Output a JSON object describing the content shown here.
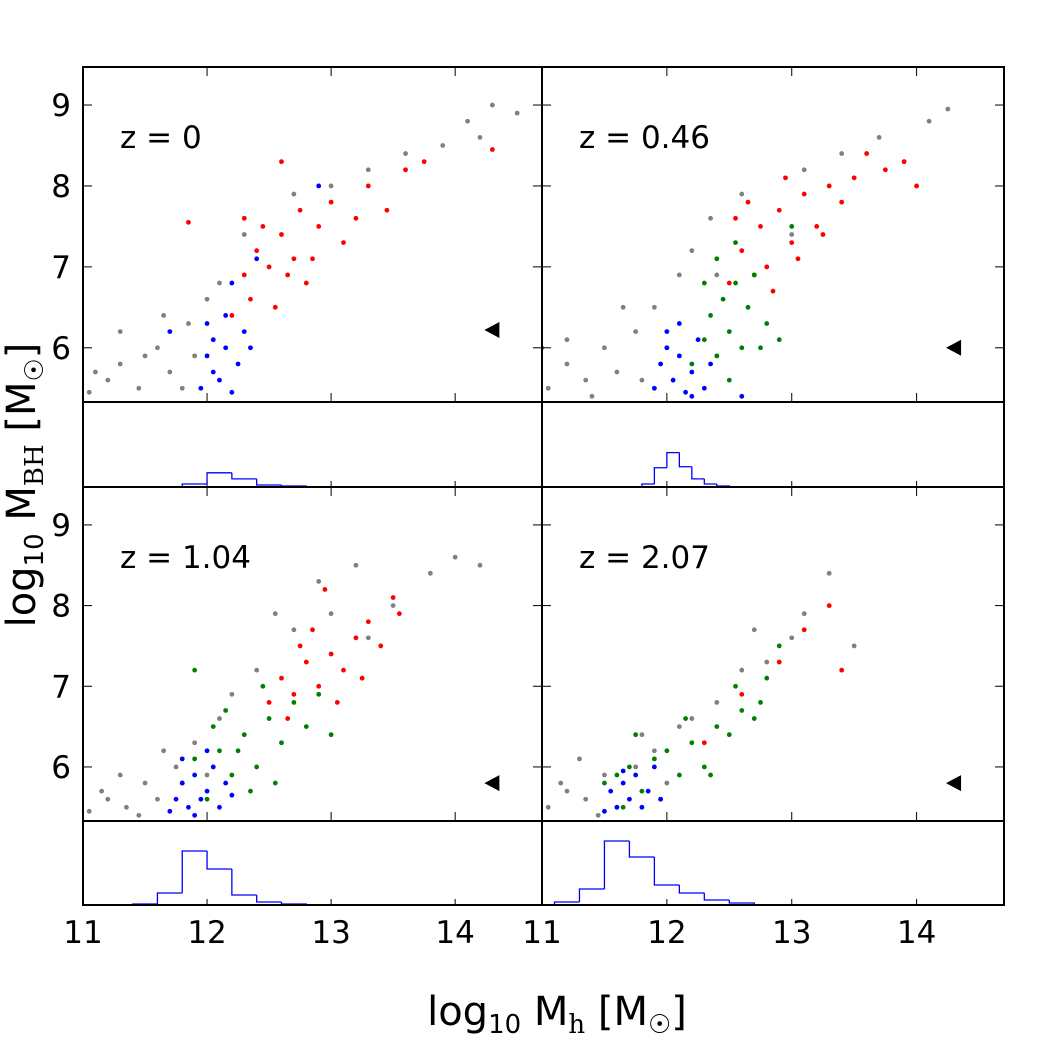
{
  "figure": {
    "xlabel": [
      "log",
      "10",
      " M",
      "h",
      " [M",
      "☉",
      "]"
    ],
    "ylabel": [
      "log",
      "10",
      " M",
      "BH",
      " [M",
      "☉",
      "]"
    ]
  },
  "chart_data": [
    {
      "type": "scatter",
      "annotation": "z = 0",
      "xlim": [
        11,
        14.7
      ],
      "ylim": [
        5.33,
        9.47
      ],
      "xticks": [
        11,
        12,
        13,
        14
      ],
      "yticks": [
        6,
        7,
        8,
        9
      ],
      "series": [
        {
          "color": "#808080",
          "x": [
            11.05,
            11.2,
            11.3,
            11.45,
            11.6,
            11.7,
            11.85,
            11.9,
            12.0,
            12.1,
            11.5,
            11.3,
            11.8,
            12.3,
            13.0,
            13.3,
            13.6,
            13.9,
            14.1,
            14.3,
            14.5,
            14.2,
            12.7,
            11.1,
            11.65
          ],
          "y": [
            5.45,
            5.6,
            5.8,
            5.5,
            6.0,
            5.7,
            6.3,
            5.9,
            6.6,
            6.8,
            5.9,
            6.2,
            5.5,
            7.4,
            8.0,
            8.2,
            8.4,
            8.5,
            8.8,
            9.0,
            8.9,
            8.6,
            7.9,
            5.7,
            6.4
          ]
        },
        {
          "color": "#ff0000",
          "x": [
            12.2,
            12.3,
            12.35,
            12.4,
            12.5,
            12.55,
            12.6,
            12.7,
            12.75,
            12.8,
            12.9,
            13.0,
            13.1,
            13.2,
            13.3,
            13.45,
            13.6,
            13.75,
            12.45,
            12.65,
            12.85,
            12.3,
            11.85,
            14.3,
            12.6
          ],
          "y": [
            6.4,
            6.9,
            6.6,
            7.2,
            7.0,
            6.5,
            7.4,
            7.1,
            7.7,
            6.8,
            7.5,
            7.8,
            7.3,
            7.6,
            8.0,
            7.7,
            8.2,
            8.3,
            7.5,
            6.9,
            7.1,
            7.6,
            7.55,
            8.45,
            8.3
          ]
        },
        {
          "color": "#0000ff",
          "x": [
            11.95,
            12.0,
            12.05,
            12.1,
            12.15,
            12.2,
            12.25,
            12.3,
            12.05,
            12.15,
            12.35,
            12.0,
            12.2,
            12.4,
            12.9,
            11.7
          ],
          "y": [
            5.5,
            5.9,
            6.1,
            5.6,
            6.0,
            5.45,
            5.8,
            6.2,
            5.7,
            6.4,
            6.0,
            6.3,
            6.8,
            7.1,
            8.0,
            6.2
          ]
        }
      ],
      "marker": {
        "x": 14.3,
        "y": 6.22,
        "color": "#000000"
      },
      "histogram": {
        "color": "#0000ff",
        "bins": [
          11.8,
          12.0,
          12.2,
          12.4,
          12.6,
          12.8
        ],
        "counts": [
          3,
          14,
          8,
          2,
          1
        ],
        "ylim": [
          0,
          84
        ]
      }
    },
    {
      "type": "scatter",
      "annotation": "z = 0.46",
      "xlim": [
        11,
        14.7
      ],
      "ylim": [
        5.33,
        9.47
      ],
      "xticks": [
        11,
        12,
        13,
        14
      ],
      "yticks": [
        6,
        7,
        8,
        9
      ],
      "series": [
        {
          "color": "#808080",
          "x": [
            11.05,
            11.2,
            11.35,
            11.5,
            11.6,
            11.75,
            11.9,
            12.0,
            12.1,
            12.2,
            11.4,
            11.8,
            12.35,
            12.6,
            13.1,
            13.4,
            13.7,
            13.9,
            14.1,
            14.25,
            13.0,
            11.2,
            11.65,
            12.4,
            11.0
          ],
          "y": [
            5.5,
            5.8,
            5.6,
            6.0,
            5.7,
            6.2,
            6.5,
            6.0,
            6.9,
            7.2,
            5.4,
            5.6,
            7.6,
            7.9,
            8.2,
            8.4,
            8.6,
            8.3,
            8.8,
            8.95,
            7.4,
            6.1,
            6.5,
            6.9,
            6.0
          ]
        },
        {
          "color": "#ff0000",
          "x": [
            12.5,
            12.6,
            12.7,
            12.75,
            12.8,
            12.9,
            13.0,
            13.1,
            13.2,
            13.3,
            13.4,
            13.5,
            13.6,
            13.75,
            13.9,
            12.65,
            12.85,
            13.05,
            12.55,
            12.95,
            13.25,
            14.0
          ],
          "y": [
            6.8,
            7.2,
            6.9,
            7.5,
            7.0,
            7.7,
            7.3,
            7.9,
            7.5,
            8.0,
            7.8,
            8.1,
            8.4,
            8.2,
            8.3,
            7.8,
            6.7,
            7.1,
            7.6,
            8.1,
            7.4,
            8.0
          ]
        },
        {
          "color": "#008000",
          "x": [
            12.3,
            12.35,
            12.4,
            12.45,
            12.5,
            12.55,
            12.6,
            12.65,
            12.7,
            12.8,
            12.2,
            12.4,
            12.55,
            12.9,
            13.0,
            12.5,
            12.75,
            12.3
          ],
          "y": [
            6.1,
            6.4,
            5.9,
            6.6,
            6.2,
            6.8,
            6.0,
            6.5,
            6.9,
            6.3,
            5.8,
            7.1,
            7.3,
            6.1,
            7.5,
            5.6,
            6.0,
            6.8
          ]
        },
        {
          "color": "#0000ff",
          "x": [
            11.9,
            11.95,
            12.0,
            12.05,
            12.1,
            12.15,
            12.2,
            12.25,
            12.3,
            12.0,
            12.1,
            12.35,
            12.2,
            12.6
          ],
          "y": [
            5.5,
            5.8,
            6.0,
            5.6,
            5.9,
            5.45,
            5.7,
            6.1,
            5.5,
            6.2,
            6.3,
            5.8,
            5.4,
            5.4
          ]
        }
      ],
      "marker": {
        "x": 14.3,
        "y": 6.0,
        "color": "#000000"
      },
      "histogram": {
        "color": "#0000ff",
        "bins": [
          11.8,
          11.9,
          12.0,
          12.1,
          12.2,
          12.3,
          12.4,
          12.5
        ],
        "counts": [
          3,
          19,
          34,
          20,
          8,
          3,
          1
        ],
        "ylim": [
          0,
          84
        ]
      }
    },
    {
      "type": "scatter",
      "annotation": "z = 1.04",
      "xlim": [
        11,
        14.7
      ],
      "ylim": [
        5.33,
        9.47
      ],
      "xticks": [
        11,
        12,
        13,
        14
      ],
      "yticks": [
        6,
        7,
        8,
        9
      ],
      "series": [
        {
          "color": "#808080",
          "x": [
            11.05,
            11.2,
            11.35,
            11.5,
            11.6,
            11.75,
            11.9,
            12.0,
            12.1,
            12.2,
            11.3,
            11.45,
            12.4,
            12.7,
            13.0,
            13.2,
            13.5,
            13.8,
            14.0,
            14.2,
            11.15,
            12.55,
            12.9,
            11.65,
            13.3
          ],
          "y": [
            5.45,
            5.6,
            5.5,
            5.8,
            5.6,
            6.0,
            6.3,
            5.9,
            6.6,
            6.9,
            5.9,
            5.4,
            7.2,
            7.7,
            7.9,
            8.5,
            8.0,
            8.4,
            8.6,
            8.5,
            5.7,
            7.9,
            8.3,
            6.2,
            7.6
          ]
        },
        {
          "color": "#ff0000",
          "x": [
            12.5,
            12.6,
            12.7,
            12.8,
            12.9,
            13.0,
            13.1,
            13.2,
            13.3,
            13.4,
            13.5,
            12.65,
            12.85,
            13.05,
            13.25,
            13.55,
            12.75,
            12.95
          ],
          "y": [
            6.8,
            7.1,
            6.9,
            7.3,
            7.0,
            7.4,
            7.2,
            7.6,
            7.8,
            7.5,
            8.1,
            6.6,
            7.7,
            6.8,
            7.1,
            7.9,
            7.5,
            8.2
          ]
        },
        {
          "color": "#008000",
          "x": [
            11.8,
            11.9,
            12.0,
            12.1,
            12.2,
            12.3,
            12.4,
            12.5,
            12.6,
            12.7,
            12.8,
            12.9,
            12.15,
            12.35,
            12.55,
            12.45,
            11.9,
            12.25,
            13.0,
            12.05
          ],
          "y": [
            5.8,
            6.1,
            5.6,
            6.2,
            5.9,
            6.4,
            6.0,
            6.6,
            6.3,
            6.8,
            6.5,
            6.9,
            6.7,
            5.7,
            5.8,
            7.0,
            7.2,
            6.2,
            6.4,
            6.5
          ]
        },
        {
          "color": "#0000ff",
          "x": [
            11.7,
            11.75,
            11.8,
            11.85,
            11.9,
            11.95,
            12.0,
            12.05,
            12.1,
            12.15,
            11.8,
            12.0,
            11.9,
            12.2
          ],
          "y": [
            5.45,
            5.6,
            5.8,
            5.5,
            5.9,
            5.6,
            5.7,
            6.0,
            5.5,
            5.8,
            6.1,
            6.2,
            5.4,
            5.65
          ]
        }
      ],
      "marker": {
        "x": 14.3,
        "y": 5.8,
        "color": "#000000"
      },
      "histogram": {
        "color": "#0000ff",
        "bins": [
          11.4,
          11.6,
          11.8,
          12.0,
          12.2,
          12.4,
          12.6,
          12.8
        ],
        "counts": [
          1,
          12,
          54,
          36,
          10,
          3,
          1
        ],
        "ylim": [
          0,
          84
        ]
      }
    },
    {
      "type": "scatter",
      "annotation": "z = 2.07",
      "xlim": [
        11,
        14.7
      ],
      "ylim": [
        5.33,
        9.47
      ],
      "xticks": [
        11,
        12,
        13,
        14
      ],
      "yticks": [
        6,
        7,
        8,
        9
      ],
      "series": [
        {
          "color": "#808080",
          "x": [
            11.05,
            11.2,
            11.35,
            11.5,
            11.6,
            11.75,
            11.9,
            12.0,
            12.1,
            12.2,
            11.3,
            11.45,
            12.4,
            12.6,
            12.8,
            13.0,
            13.1,
            13.3,
            13.5,
            11.15,
            12.7,
            11.8
          ],
          "y": [
            5.5,
            5.7,
            5.6,
            5.9,
            5.5,
            6.0,
            6.2,
            5.8,
            6.5,
            6.6,
            6.1,
            5.4,
            6.8,
            7.2,
            7.3,
            7.6,
            7.9,
            8.4,
            7.5,
            5.8,
            7.7,
            6.4
          ]
        },
        {
          "color": "#008000",
          "x": [
            11.5,
            11.6,
            11.7,
            11.8,
            11.9,
            12.0,
            12.1,
            12.2,
            12.3,
            12.4,
            12.5,
            12.6,
            12.7,
            12.8,
            12.9,
            11.75,
            11.95,
            12.15,
            12.35,
            12.55,
            12.75,
            11.65
          ],
          "y": [
            5.8,
            5.9,
            6.0,
            5.7,
            6.1,
            6.2,
            5.9,
            6.3,
            6.0,
            6.5,
            6.4,
            6.7,
            6.6,
            7.1,
            7.5,
            6.4,
            5.6,
            6.6,
            5.9,
            7.0,
            6.8,
            5.5
          ]
        },
        {
          "color": "#ff0000",
          "x": [
            12.6,
            12.9,
            13.1,
            13.3,
            13.4,
            12.3
          ],
          "y": [
            6.9,
            7.3,
            7.7,
            8.0,
            7.2,
            6.3
          ]
        },
        {
          "color": "#0000ff",
          "x": [
            11.5,
            11.55,
            11.6,
            11.65,
            11.7,
            11.75,
            11.8,
            11.85,
            11.9,
            11.65,
            11.95
          ],
          "y": [
            5.45,
            5.7,
            5.5,
            5.8,
            5.6,
            5.9,
            5.5,
            5.7,
            6.0,
            5.95,
            5.6
          ]
        }
      ],
      "marker": {
        "x": 14.3,
        "y": 5.8,
        "color": "#000000"
      },
      "histogram": {
        "color": "#0000ff",
        "bins": [
          11.1,
          11.3,
          11.5,
          11.7,
          11.9,
          12.1,
          12.3,
          12.5,
          12.7
        ],
        "counts": [
          3,
          16,
          64,
          48,
          20,
          12,
          5,
          2
        ],
        "ylim": [
          0,
          84
        ]
      }
    }
  ]
}
